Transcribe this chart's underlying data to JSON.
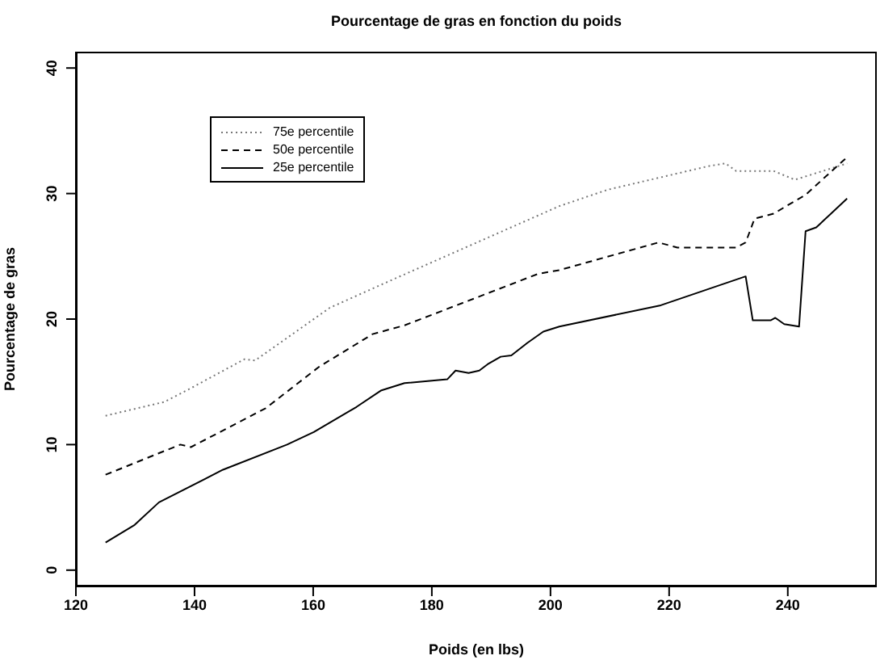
{
  "chart_data": {
    "type": "line",
    "title": "Pourcentage de gras en fonction du poids",
    "xlabel": "Poids (en lbs)",
    "ylabel": "Pourcentage de gras",
    "xlim": [
      120,
      255
    ],
    "xticks": [
      120,
      140,
      160,
      180,
      200,
      220,
      240
    ],
    "ylim": [
      -1.3,
      41.3
    ],
    "yticks": [
      0,
      10,
      20,
      30,
      40
    ],
    "grid": false,
    "legend": "top left",
    "marker": "none",
    "series": [
      {
        "name": "75e percentile",
        "color": "#777777",
        "line_style": "dotted",
        "x": [
          125,
          134.9,
          139.4,
          148.4,
          150.2,
          162.8,
          172.7,
          201.5,
          209.6,
          226.8,
          229.5,
          231.3,
          237.6,
          241.2,
          250
        ],
        "values": [
          12.3,
          13.4,
          14.5,
          16.8,
          16.7,
          20.9,
          23,
          29,
          30.3,
          32.2,
          32.4,
          31.8,
          31.8,
          31.1,
          32.4
        ]
      },
      {
        "name": "50e percentile",
        "color": "#000000",
        "line_style": "dashed",
        "x": [
          125,
          137.6,
          139.4,
          152,
          161,
          170,
          175.4,
          197.9,
          201.5,
          218.2,
          221.4,
          231.3,
          232.9,
          234.4,
          237.6,
          243,
          250
        ],
        "values": [
          7.6,
          10,
          9.8,
          12.9,
          16.2,
          18.8,
          19.5,
          23.6,
          23.9,
          26.1,
          25.7,
          25.7,
          26.1,
          28,
          28.4,
          29.9,
          32.9
        ]
      },
      {
        "name": "25e percentile",
        "color": "#000000",
        "line_style": "solid",
        "x": [
          125,
          129.9,
          134,
          144.8,
          155.6,
          160.1,
          167.3,
          171.4,
          175.4,
          182.6,
          184,
          186.2,
          188,
          189.4,
          191.6,
          193.4,
          196.1,
          198.8,
          201.5,
          218.6,
          232.9,
          234.1,
          237.1,
          237.9,
          239.4,
          241.9,
          243,
          244.8,
          250
        ],
        "values": [
          2.2,
          3.6,
          5.4,
          8,
          10,
          11,
          13,
          14.3,
          14.9,
          15.2,
          15.9,
          15.7,
          15.9,
          16.4,
          17,
          17.1,
          18.1,
          19,
          19.4,
          21.1,
          23.4,
          19.9,
          19.9,
          20.1,
          19.6,
          19.4,
          27,
          27.3,
          29.6
        ]
      }
    ]
  }
}
